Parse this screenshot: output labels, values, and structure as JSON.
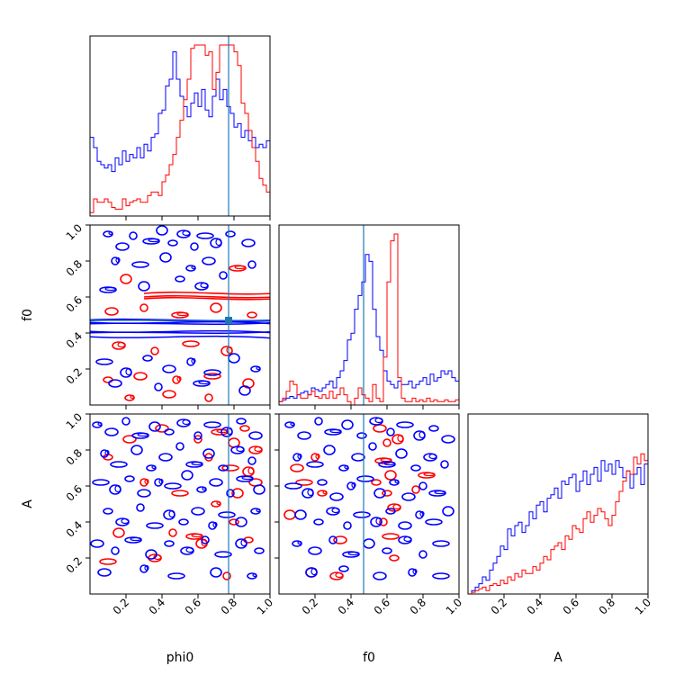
{
  "chart_data": {
    "type": "corner",
    "parameters": [
      "phi0",
      "f0",
      "A"
    ],
    "axis_range": [
      0,
      1
    ],
    "tick_labels": [
      "0.2",
      "0.4",
      "0.6",
      "0.8",
      "1.0"
    ],
    "truth": {
      "phi0": 0.77,
      "f0": 0.47
    },
    "colors": {
      "blue": "#0000ff",
      "red": "#ff0000",
      "truth": "#1f77b4"
    },
    "bins": 50,
    "histograms": {
      "phi0": {
        "blue": [
          0.46,
          0.4,
          0.32,
          0.3,
          0.28,
          0.3,
          0.26,
          0.34,
          0.3,
          0.38,
          0.32,
          0.36,
          0.34,
          0.4,
          0.34,
          0.42,
          0.38,
          0.46,
          0.48,
          0.6,
          0.62,
          0.76,
          0.8,
          0.96,
          0.8,
          0.7,
          0.64,
          0.58,
          0.66,
          0.72,
          0.64,
          0.74,
          0.62,
          0.58,
          0.7,
          0.8,
          0.68,
          0.74,
          0.64,
          0.6,
          0.52,
          0.54,
          0.46,
          0.5,
          0.44,
          0.46,
          0.4,
          0.42,
          0.4,
          0.44
        ],
        "red": [
          0.02,
          0.1,
          0.08,
          0.08,
          0.1,
          0.08,
          0.05,
          0.04,
          0.04,
          0.1,
          0.06,
          0.08,
          0.09,
          0.1,
          0.08,
          0.08,
          0.12,
          0.14,
          0.14,
          0.12,
          0.2,
          0.24,
          0.3,
          0.36,
          0.46,
          0.56,
          0.68,
          0.8,
          0.98,
          1.0,
          1.0,
          1.0,
          0.94,
          0.96,
          0.74,
          0.84,
          1.0,
          1.0,
          1.0,
          1.0,
          0.96,
          0.88,
          0.66,
          0.6,
          0.5,
          0.4,
          0.32,
          0.22,
          0.18,
          0.14
        ]
      },
      "f0": {
        "blue": [
          0.02,
          0.03,
          0.04,
          0.05,
          0.04,
          0.06,
          0.07,
          0.08,
          0.06,
          0.1,
          0.09,
          0.08,
          0.1,
          0.12,
          0.14,
          0.1,
          0.16,
          0.2,
          0.26,
          0.38,
          0.42,
          0.56,
          0.64,
          0.72,
          0.88,
          0.84,
          0.56,
          0.4,
          0.32,
          0.2,
          0.14,
          0.12,
          0.1,
          0.14,
          0.12,
          0.12,
          0.14,
          0.1,
          0.12,
          0.14,
          0.16,
          0.12,
          0.18,
          0.14,
          0.16,
          0.2,
          0.18,
          0.2,
          0.16,
          0.14
        ],
        "red": [
          0.02,
          0.04,
          0.08,
          0.14,
          0.12,
          0.06,
          0.04,
          0.04,
          0.06,
          0.08,
          0.05,
          0.04,
          0.06,
          0.04,
          0.08,
          0.04,
          0.06,
          0.1,
          0.06,
          0.02,
          0.0,
          0.04,
          0.1,
          0.06,
          0.04,
          0.02,
          0.12,
          0.04,
          0.02,
          0.28,
          0.72,
          0.96,
          1.0,
          0.16,
          0.04,
          0.02,
          0.02,
          0.04,
          0.02,
          0.03,
          0.02,
          0.04,
          0.02,
          0.03,
          0.02,
          0.02,
          0.03,
          0.02,
          0.02,
          0.03
        ]
      },
      "A": {
        "blue": [
          0.0,
          0.02,
          0.04,
          0.06,
          0.1,
          0.08,
          0.14,
          0.18,
          0.22,
          0.28,
          0.26,
          0.38,
          0.34,
          0.4,
          0.42,
          0.36,
          0.4,
          0.48,
          0.44,
          0.52,
          0.54,
          0.48,
          0.56,
          0.58,
          0.62,
          0.56,
          0.66,
          0.64,
          0.68,
          0.7,
          0.6,
          0.66,
          0.72,
          0.64,
          0.7,
          0.74,
          0.66,
          0.78,
          0.72,
          0.76,
          0.7,
          0.78,
          0.74,
          0.68,
          0.72,
          0.62,
          0.7,
          0.74,
          0.64,
          0.76
        ],
        "red": [
          0.0,
          0.01,
          0.02,
          0.03,
          0.04,
          0.02,
          0.05,
          0.06,
          0.05,
          0.08,
          0.06,
          0.1,
          0.08,
          0.12,
          0.1,
          0.14,
          0.12,
          0.12,
          0.16,
          0.14,
          0.18,
          0.22,
          0.2,
          0.26,
          0.28,
          0.3,
          0.26,
          0.34,
          0.32,
          0.4,
          0.38,
          0.36,
          0.44,
          0.48,
          0.42,
          0.46,
          0.5,
          0.48,
          0.44,
          0.4,
          0.46,
          0.54,
          0.6,
          0.66,
          0.72,
          0.7,
          0.8,
          0.76,
          0.82,
          0.78
        ]
      }
    },
    "contours": {
      "phi0_f0": {
        "blue_lines": [
          0.47,
          0.46,
          0.45,
          0.41,
          0.4,
          0.38
        ],
        "red_lines": [
          0.62,
          0.6,
          0.59
        ],
        "blue_blobs": [
          [
            0.1,
            0.95
          ],
          [
            0.18,
            0.88
          ],
          [
            0.24,
            0.94
          ],
          [
            0.34,
            0.91
          ],
          [
            0.4,
            0.97
          ],
          [
            0.46,
            0.9
          ],
          [
            0.52,
            0.95
          ],
          [
            0.58,
            0.88
          ],
          [
            0.64,
            0.94
          ],
          [
            0.7,
            0.9
          ],
          [
            0.78,
            0.95
          ],
          [
            0.88,
            0.9
          ],
          [
            0.14,
            0.8
          ],
          [
            0.28,
            0.78
          ],
          [
            0.42,
            0.82
          ],
          [
            0.56,
            0.76
          ],
          [
            0.66,
            0.8
          ],
          [
            0.9,
            0.78
          ],
          [
            0.1,
            0.64
          ],
          [
            0.3,
            0.66
          ],
          [
            0.5,
            0.7
          ],
          [
            0.62,
            0.66
          ],
          [
            0.74,
            0.72
          ],
          [
            0.08,
            0.24
          ],
          [
            0.2,
            0.18
          ],
          [
            0.32,
            0.26
          ],
          [
            0.44,
            0.2
          ],
          [
            0.56,
            0.24
          ],
          [
            0.68,
            0.18
          ],
          [
            0.8,
            0.26
          ],
          [
            0.92,
            0.2
          ],
          [
            0.14,
            0.12
          ],
          [
            0.38,
            0.1
          ],
          [
            0.62,
            0.12
          ],
          [
            0.86,
            0.08
          ]
        ],
        "red_blobs": [
          [
            0.12,
            0.52
          ],
          [
            0.3,
            0.54
          ],
          [
            0.5,
            0.5
          ],
          [
            0.7,
            0.54
          ],
          [
            0.9,
            0.5
          ],
          [
            0.16,
            0.33
          ],
          [
            0.36,
            0.3
          ],
          [
            0.56,
            0.34
          ],
          [
            0.76,
            0.3
          ],
          [
            0.1,
            0.14
          ],
          [
            0.28,
            0.16
          ],
          [
            0.48,
            0.14
          ],
          [
            0.68,
            0.16
          ],
          [
            0.88,
            0.12
          ],
          [
            0.22,
            0.04
          ],
          [
            0.44,
            0.06
          ],
          [
            0.66,
            0.04
          ],
          [
            0.82,
            0.76
          ],
          [
            0.2,
            0.7
          ]
        ]
      },
      "phi0_A": {
        "blue_blobs": [
          [
            0.04,
            0.94
          ],
          [
            0.12,
            0.9
          ],
          [
            0.2,
            0.96
          ],
          [
            0.28,
            0.88
          ],
          [
            0.36,
            0.93
          ],
          [
            0.44,
            0.9
          ],
          [
            0.52,
            0.95
          ],
          [
            0.6,
            0.88
          ],
          [
            0.68,
            0.94
          ],
          [
            0.76,
            0.9
          ],
          [
            0.84,
            0.96
          ],
          [
            0.92,
            0.88
          ],
          [
            0.08,
            0.78
          ],
          [
            0.16,
            0.72
          ],
          [
            0.26,
            0.8
          ],
          [
            0.34,
            0.7
          ],
          [
            0.42,
            0.76
          ],
          [
            0.5,
            0.82
          ],
          [
            0.58,
            0.72
          ],
          [
            0.66,
            0.78
          ],
          [
            0.74,
            0.7
          ],
          [
            0.82,
            0.8
          ],
          [
            0.9,
            0.74
          ],
          [
            0.06,
            0.62
          ],
          [
            0.14,
            0.58
          ],
          [
            0.22,
            0.64
          ],
          [
            0.3,
            0.56
          ],
          [
            0.38,
            0.62
          ],
          [
            0.46,
            0.6
          ],
          [
            0.54,
            0.66
          ],
          [
            0.62,
            0.58
          ],
          [
            0.7,
            0.62
          ],
          [
            0.78,
            0.56
          ],
          [
            0.86,
            0.64
          ],
          [
            0.94,
            0.58
          ],
          [
            0.1,
            0.46
          ],
          [
            0.18,
            0.4
          ],
          [
            0.28,
            0.48
          ],
          [
            0.36,
            0.38
          ],
          [
            0.44,
            0.44
          ],
          [
            0.52,
            0.4
          ],
          [
            0.6,
            0.46
          ],
          [
            0.68,
            0.38
          ],
          [
            0.76,
            0.44
          ],
          [
            0.84,
            0.4
          ],
          [
            0.92,
            0.46
          ],
          [
            0.04,
            0.28
          ],
          [
            0.14,
            0.24
          ],
          [
            0.24,
            0.3
          ],
          [
            0.34,
            0.22
          ],
          [
            0.44,
            0.28
          ],
          [
            0.54,
            0.24
          ],
          [
            0.64,
            0.3
          ],
          [
            0.74,
            0.22
          ],
          [
            0.84,
            0.28
          ],
          [
            0.94,
            0.24
          ],
          [
            0.08,
            0.12
          ],
          [
            0.3,
            0.14
          ],
          [
            0.48,
            0.1
          ],
          [
            0.7,
            0.12
          ],
          [
            0.9,
            0.1
          ]
        ],
        "red_blobs": [
          [
            0.4,
            0.92
          ],
          [
            0.6,
            0.86
          ],
          [
            0.72,
            0.9
          ],
          [
            0.8,
            0.84
          ],
          [
            0.86,
            0.92
          ],
          [
            0.92,
            0.8
          ],
          [
            0.66,
            0.76
          ],
          [
            0.78,
            0.7
          ],
          [
            0.88,
            0.68
          ],
          [
            0.1,
            0.76
          ],
          [
            0.22,
            0.86
          ],
          [
            0.3,
            0.62
          ],
          [
            0.5,
            0.56
          ],
          [
            0.82,
            0.56
          ],
          [
            0.7,
            0.5
          ],
          [
            0.92,
            0.62
          ],
          [
            0.46,
            0.34
          ],
          [
            0.58,
            0.32
          ],
          [
            0.16,
            0.34
          ],
          [
            0.8,
            0.4
          ],
          [
            0.36,
            0.2
          ],
          [
            0.76,
            0.1
          ],
          [
            0.1,
            0.18
          ],
          [
            0.62,
            0.28
          ],
          [
            0.88,
            0.3
          ]
        ]
      },
      "f0_A": {
        "blue_blobs": [
          [
            0.06,
            0.94
          ],
          [
            0.14,
            0.88
          ],
          [
            0.22,
            0.96
          ],
          [
            0.3,
            0.9
          ],
          [
            0.38,
            0.94
          ],
          [
            0.46,
            0.88
          ],
          [
            0.54,
            0.96
          ],
          [
            0.62,
            0.9
          ],
          [
            0.7,
            0.94
          ],
          [
            0.78,
            0.88
          ],
          [
            0.86,
            0.92
          ],
          [
            0.94,
            0.86
          ],
          [
            0.1,
            0.76
          ],
          [
            0.2,
            0.72
          ],
          [
            0.28,
            0.8
          ],
          [
            0.36,
            0.7
          ],
          [
            0.44,
            0.76
          ],
          [
            0.52,
            0.82
          ],
          [
            0.6,
            0.72
          ],
          [
            0.68,
            0.78
          ],
          [
            0.76,
            0.7
          ],
          [
            0.84,
            0.76
          ],
          [
            0.92,
            0.72
          ],
          [
            0.08,
            0.6
          ],
          [
            0.16,
            0.56
          ],
          [
            0.24,
            0.62
          ],
          [
            0.32,
            0.54
          ],
          [
            0.4,
            0.6
          ],
          [
            0.48,
            0.64
          ],
          [
            0.56,
            0.56
          ],
          [
            0.64,
            0.62
          ],
          [
            0.72,
            0.54
          ],
          [
            0.8,
            0.6
          ],
          [
            0.88,
            0.56
          ],
          [
            0.12,
            0.44
          ],
          [
            0.22,
            0.4
          ],
          [
            0.3,
            0.46
          ],
          [
            0.38,
            0.38
          ],
          [
            0.46,
            0.44
          ],
          [
            0.54,
            0.4
          ],
          [
            0.62,
            0.46
          ],
          [
            0.7,
            0.38
          ],
          [
            0.78,
            0.44
          ],
          [
            0.86,
            0.4
          ],
          [
            0.94,
            0.46
          ],
          [
            0.1,
            0.28
          ],
          [
            0.2,
            0.24
          ],
          [
            0.3,
            0.3
          ],
          [
            0.4,
            0.22
          ],
          [
            0.5,
            0.28
          ],
          [
            0.6,
            0.24
          ],
          [
            0.7,
            0.3
          ],
          [
            0.8,
            0.22
          ],
          [
            0.9,
            0.28
          ],
          [
            0.18,
            0.12
          ],
          [
            0.36,
            0.14
          ],
          [
            0.56,
            0.1
          ],
          [
            0.74,
            0.12
          ],
          [
            0.9,
            0.1
          ]
        ],
        "red_blobs": [
          [
            0.56,
            0.92
          ],
          [
            0.6,
            0.84
          ],
          [
            0.58,
            0.74
          ],
          [
            0.62,
            0.66
          ],
          [
            0.6,
            0.56
          ],
          [
            0.64,
            0.48
          ],
          [
            0.58,
            0.4
          ],
          [
            0.62,
            0.32
          ],
          [
            0.66,
            0.86
          ],
          [
            0.54,
            0.62
          ],
          [
            0.1,
            0.7
          ],
          [
            0.2,
            0.76
          ],
          [
            0.14,
            0.62
          ],
          [
            0.06,
            0.44
          ],
          [
            0.24,
            0.56
          ],
          [
            0.34,
            0.3
          ],
          [
            0.76,
            0.58
          ],
          [
            0.82,
            0.66
          ],
          [
            0.18,
            0.12
          ],
          [
            0.64,
            0.2
          ],
          [
            0.32,
            0.1
          ]
        ]
      }
    }
  }
}
